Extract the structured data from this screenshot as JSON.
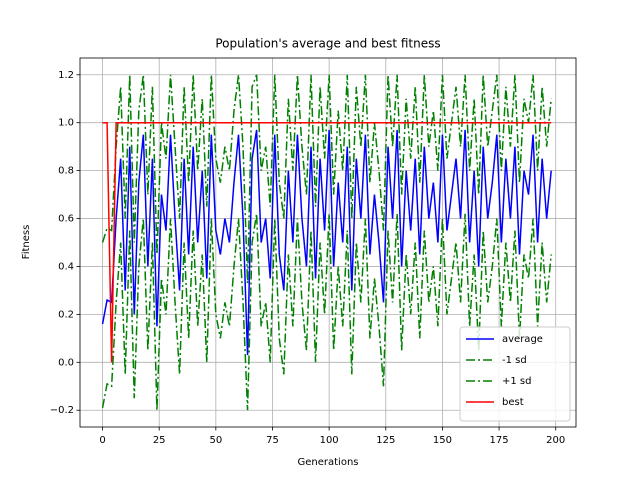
{
  "chart_data": {
    "type": "line",
    "title": "Population's average and best fitness",
    "x_label": "Generations",
    "y_label": "Fitness",
    "x": [
      0,
      2,
      4,
      6,
      8,
      10,
      12,
      14,
      16,
      18,
      20,
      22,
      24,
      26,
      28,
      30,
      32,
      34,
      36,
      38,
      40,
      42,
      44,
      46,
      48,
      50,
      52,
      54,
      56,
      58,
      60,
      62,
      64,
      66,
      68,
      70,
      72,
      74,
      76,
      78,
      80,
      82,
      84,
      86,
      88,
      90,
      92,
      94,
      96,
      98,
      100,
      102,
      104,
      106,
      108,
      110,
      112,
      114,
      116,
      118,
      120,
      122,
      124,
      126,
      128,
      130,
      132,
      134,
      136,
      138,
      140,
      142,
      144,
      146,
      148,
      150,
      152,
      154,
      156,
      158,
      160,
      162,
      164,
      166,
      168,
      170,
      172,
      174,
      176,
      178,
      180,
      182,
      184,
      186,
      188,
      190,
      192,
      194,
      196,
      198
    ],
    "series": [
      {
        "name": "average",
        "color": "#0000ff",
        "dash": "solid",
        "values": [
          0.16,
          0.26,
          0.25,
          0.6,
          0.85,
          0.3,
          0.9,
          0.2,
          0.75,
          0.95,
          0.4,
          0.85,
          0.15,
          0.7,
          0.55,
          0.95,
          0.6,
          0.3,
          0.85,
          0.45,
          0.9,
          0.5,
          0.8,
          0.35,
          0.95,
          0.55,
          0.45,
          0.6,
          0.5,
          0.75,
          0.95,
          0.6,
          0.03,
          0.85,
          0.97,
          0.5,
          0.6,
          0.35,
          0.95,
          0.45,
          0.3,
          0.8,
          0.5,
          0.95,
          0.6,
          0.4,
          0.9,
          0.35,
          0.85,
          0.55,
          0.97,
          0.4,
          0.75,
          0.5,
          0.9,
          0.3,
          0.85,
          0.6,
          0.95,
          0.45,
          0.7,
          0.5,
          0.25,
          0.9,
          0.6,
          0.97,
          0.4,
          0.8,
          0.55,
          0.85,
          0.45,
          0.9,
          0.6,
          0.75,
          0.5,
          0.95,
          0.55,
          0.7,
          0.85,
          0.6,
          0.97,
          0.5,
          0.8,
          0.4,
          0.9,
          0.6,
          0.75,
          0.95,
          0.5,
          0.85,
          0.6,
          0.9,
          0.45,
          0.8,
          0.7,
          0.95,
          0.5,
          0.85,
          0.6,
          0.8
        ]
      },
      {
        "name": "-1 sd",
        "color": "#008000",
        "dash": "dashdot",
        "values": [
          -0.19,
          -0.09,
          -0.1,
          0.25,
          0.5,
          -0.05,
          0.55,
          -0.15,
          0.4,
          0.6,
          0.05,
          0.5,
          -0.2,
          0.35,
          0.2,
          0.6,
          0.25,
          -0.05,
          0.5,
          0.1,
          0.55,
          0.15,
          0.45,
          0,
          0.6,
          0.2,
          0.1,
          0.25,
          0.15,
          0.4,
          0.6,
          0.25,
          -0.2,
          0.5,
          0.62,
          0.15,
          0.25,
          0,
          0.6,
          0.1,
          -0.05,
          0.45,
          0.15,
          0.6,
          0.25,
          0.05,
          0.55,
          0,
          0.5,
          0.2,
          0.62,
          0.05,
          0.4,
          0.15,
          0.55,
          -0.05,
          0.5,
          0.25,
          0.6,
          0.1,
          0.35,
          0.15,
          -0.1,
          0.55,
          0.25,
          0.62,
          0.05,
          0.45,
          0.2,
          0.5,
          0.1,
          0.55,
          0.25,
          0.4,
          0.15,
          0.6,
          0.2,
          0.35,
          0.5,
          0.25,
          0.62,
          0.15,
          0.45,
          0.05,
          0.55,
          0.25,
          0.4,
          0.6,
          0.15,
          0.5,
          0.25,
          0.55,
          0.1,
          0.45,
          0.35,
          0.6,
          0.15,
          0.5,
          0.25,
          0.45
        ]
      },
      {
        "name": "+1 sd",
        "color": "#008000",
        "dash": "dashdot",
        "values": [
          0.5,
          0.56,
          0.55,
          0.9,
          1.15,
          0.6,
          1.2,
          0.5,
          1.05,
          1.2,
          0.7,
          1.15,
          0.45,
          1.0,
          0.85,
          1.2,
          0.9,
          0.6,
          1.15,
          0.75,
          1.2,
          0.8,
          1.1,
          0.65,
          1.2,
          0.85,
          0.75,
          0.9,
          0.8,
          1.05,
          1.2,
          0.9,
          0.33,
          1.15,
          1.2,
          0.8,
          0.9,
          0.65,
          1.2,
          0.75,
          0.6,
          1.1,
          0.8,
          1.2,
          0.9,
          0.7,
          1.2,
          0.65,
          1.15,
          0.85,
          1.2,
          0.7,
          1.05,
          0.8,
          1.2,
          0.6,
          1.15,
          0.9,
          1.2,
          0.75,
          1.0,
          0.8,
          0.55,
          1.2,
          0.9,
          1.2,
          0.7,
          1.1,
          0.85,
          1.15,
          0.75,
          1.2,
          0.9,
          1.05,
          0.8,
          1.2,
          0.85,
          1.0,
          1.15,
          0.9,
          1.2,
          0.8,
          1.1,
          0.7,
          1.2,
          0.9,
          1.05,
          1.2,
          0.8,
          1.15,
          0.9,
          1.2,
          0.75,
          1.1,
          1.0,
          1.2,
          0.8,
          1.15,
          0.9,
          1.1
        ]
      },
      {
        "name": "best",
        "color": "#ff0000",
        "dash": "solid",
        "values": [
          1,
          1,
          0,
          1,
          1,
          1,
          1,
          1,
          1,
          1,
          1,
          1,
          1,
          1,
          1,
          1,
          1,
          1,
          1,
          1,
          1,
          1,
          1,
          1,
          1,
          1,
          1,
          1,
          1,
          1,
          1,
          1,
          1,
          1,
          1,
          1,
          1,
          1,
          1,
          1,
          1,
          1,
          1,
          1,
          1,
          1,
          1,
          1,
          1,
          1,
          1,
          1,
          1,
          1,
          1,
          1,
          1,
          1,
          1,
          1,
          1,
          1,
          1,
          1,
          1,
          1,
          1,
          1,
          1,
          1,
          1,
          1,
          1,
          1,
          1,
          1,
          1,
          1,
          1,
          1,
          1,
          1,
          1,
          1,
          1,
          1,
          1,
          1,
          1,
          1,
          1,
          1,
          1,
          1,
          1,
          1,
          1,
          1,
          1,
          1
        ]
      }
    ],
    "xlim": [
      -9.95,
      208.95
    ],
    "xticks": [
      0,
      25,
      50,
      75,
      100,
      125,
      150,
      175,
      200
    ],
    "ylim": [
      -0.27,
      1.27
    ],
    "yticks": [
      {
        "value": -0.2,
        "label": "−0.2"
      },
      {
        "value": 0,
        "label": "0.0"
      },
      0.2,
      0.4,
      0.6,
      0.8,
      {
        "value": 1,
        "label": "1.0"
      },
      1.2
    ],
    "grid": true,
    "legend": "lower right"
  }
}
